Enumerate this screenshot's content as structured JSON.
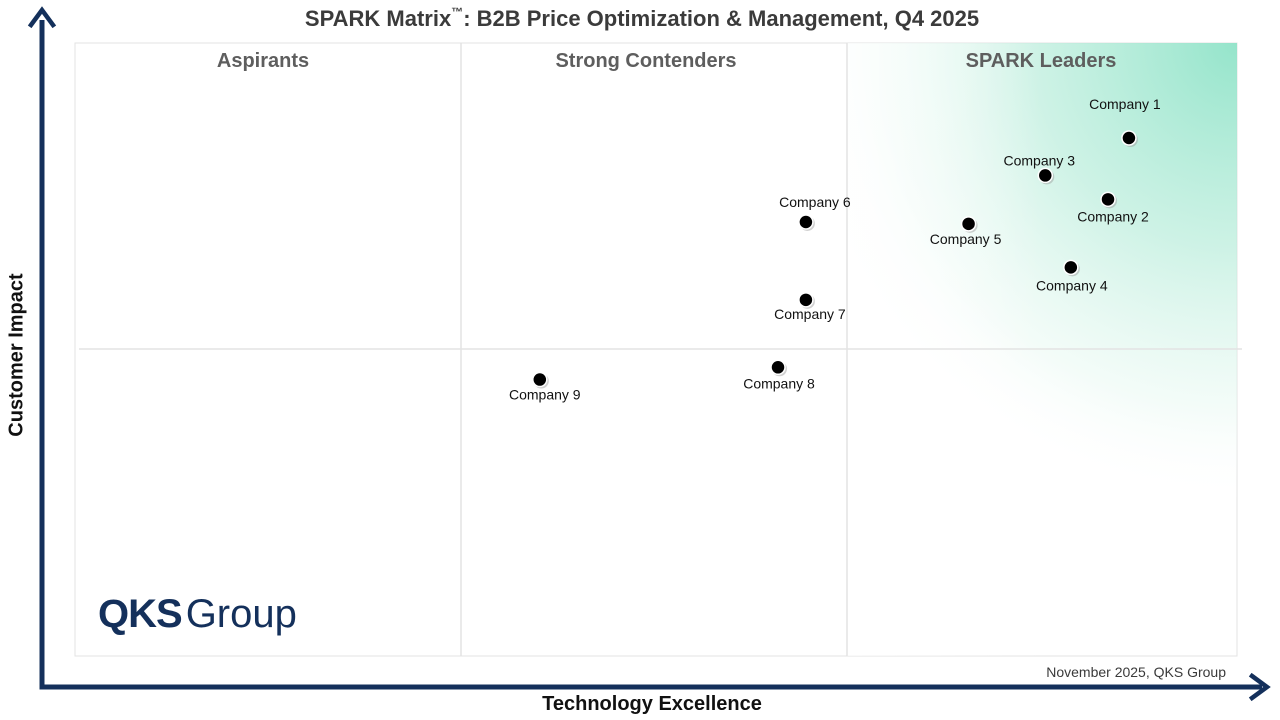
{
  "chart_data": {
    "type": "scatter",
    "title_main": "SPARK Matrix",
    "title_tm": "™",
    "title_rest": ": B2B Price Optimization & Management, Q4 2025",
    "xlabel": "Technology Excellence",
    "ylabel": "Customer Impact",
    "quadrants": [
      "Aspirants",
      "Strong Contenders",
      "SPARK Leaders"
    ],
    "points": [
      {
        "name": "Company 1",
        "x": 0.907,
        "y": 0.845
      },
      {
        "name": "Company 2",
        "x": 0.889,
        "y": 0.745
      },
      {
        "name": "Company 3",
        "x": 0.835,
        "y": 0.784
      },
      {
        "name": "Company 4",
        "x": 0.857,
        "y": 0.634
      },
      {
        "name": "Company 5",
        "x": 0.769,
        "y": 0.705
      },
      {
        "name": "Company 6",
        "x": 0.629,
        "y": 0.708
      },
      {
        "name": "Company 7",
        "x": 0.629,
        "y": 0.581
      },
      {
        "name": "Company 8",
        "x": 0.605,
        "y": 0.471
      },
      {
        "name": "Company 9",
        "x": 0.4,
        "y": 0.451
      }
    ]
  },
  "source": "November 2025, QKS Group",
  "logo": {
    "bold": "QKS",
    "regular": "Group"
  },
  "colors": {
    "axis": "#14305b",
    "leaders_fill": "#74dcbd",
    "grid": "#e3e3e3",
    "dot": "#000000",
    "logo": "#14305b"
  }
}
